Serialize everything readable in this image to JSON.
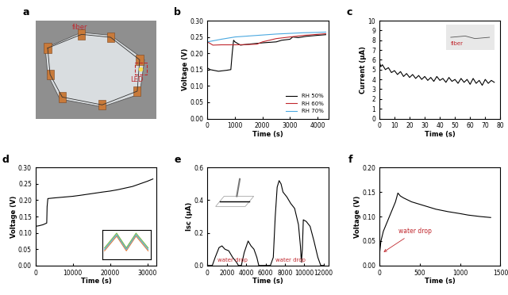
{
  "chart_data": [
    {
      "type": "image",
      "title": "a",
      "annotations": [
        "fiber",
        "LED"
      ]
    },
    {
      "type": "line",
      "title": "b",
      "x_label": "Time (s)",
      "y_label": "Voltage (V)",
      "xlim": [
        0,
        4400
      ],
      "xticks": [
        0,
        1000,
        2000,
        3000,
        4000
      ],
      "ylim": [
        0,
        0.3
      ],
      "yticks": [
        {
          "value": 0,
          "label": "0.00"
        },
        {
          "value": 0.05,
          "label": "0.05"
        },
        {
          "value": 0.1,
          "label": "0.10"
        },
        {
          "value": 0.15,
          "label": "0.15"
        },
        {
          "value": 0.2,
          "label": "0.20"
        },
        {
          "value": 0.25,
          "label": "0.25"
        },
        {
          "value": 0.3,
          "label": "0.30"
        }
      ],
      "legend": "lower right",
      "series": [
        {
          "name": "RH 50%",
          "color": "#000000",
          "x": [
            0,
            100,
            400,
            700,
            850,
            900,
            950,
            1000,
            1200,
            1500,
            2000,
            2500,
            2700,
            3000,
            3100,
            3300,
            3600,
            4000,
            4300
          ],
          "values": [
            0.155,
            0.15,
            0.145,
            0.148,
            0.15,
            0.2,
            0.24,
            0.235,
            0.225,
            0.228,
            0.232,
            0.235,
            0.24,
            0.243,
            0.25,
            0.248,
            0.252,
            0.255,
            0.257
          ]
        },
        {
          "name": "RH 60%",
          "color": "#c0272d",
          "x": [
            0,
            200,
            500,
            1000,
            1500,
            1800,
            2000,
            2500,
            3000,
            3500,
            4000,
            4300
          ],
          "values": [
            0.235,
            0.225,
            0.226,
            0.226,
            0.227,
            0.228,
            0.235,
            0.245,
            0.25,
            0.255,
            0.258,
            0.26
          ]
        },
        {
          "name": "RH 70%",
          "color": "#4aa8e0",
          "x": [
            0,
            500,
            1000,
            1500,
            2000,
            2500,
            3000,
            3500,
            4000,
            4300
          ],
          "values": [
            0.235,
            0.243,
            0.25,
            0.253,
            0.256,
            0.259,
            0.261,
            0.263,
            0.264,
            0.265
          ]
        }
      ]
    },
    {
      "type": "line",
      "title": "c",
      "x_label": "Time (s)",
      "y_label": "Current (μA)",
      "xlim": [
        0,
        80
      ],
      "xticks": [
        0,
        10,
        20,
        30,
        40,
        50,
        60,
        70,
        80
      ],
      "ylim": [
        0,
        10
      ],
      "yticks": [
        0,
        1,
        2,
        3,
        4,
        5,
        6,
        7,
        8,
        9,
        10
      ],
      "annotations": [
        "fiber"
      ],
      "series": [
        {
          "color": "#000000",
          "x": [
            0,
            1,
            2,
            4,
            6,
            8,
            10,
            12,
            14,
            16,
            18,
            20,
            22,
            24,
            26,
            28,
            30,
            32,
            34,
            36,
            38,
            40,
            42,
            44,
            46,
            48,
            50,
            52,
            54,
            56,
            58,
            60,
            62,
            64,
            66,
            68,
            70,
            72,
            74,
            76
          ],
          "values": [
            5.8,
            5.3,
            5.5,
            5.0,
            5.2,
            4.7,
            4.9,
            4.5,
            4.8,
            4.3,
            4.6,
            4.2,
            4.5,
            4.1,
            4.4,
            4.0,
            4.3,
            3.9,
            4.2,
            3.8,
            4.3,
            3.9,
            4.1,
            3.7,
            4.2,
            3.8,
            4.0,
            3.6,
            4.1,
            3.7,
            4.0,
            3.5,
            4.1,
            3.6,
            3.9,
            3.4,
            4.0,
            3.6,
            3.9,
            3.7
          ]
        }
      ]
    },
    {
      "type": "line",
      "title": "d",
      "x_label": "Time (s)",
      "y_label": "Voltage (V)",
      "xlim": [
        0,
        32500
      ],
      "xticks": [
        0,
        10000,
        20000,
        30000
      ],
      "ylim": [
        0,
        0.3
      ],
      "yticks": [
        {
          "value": 0,
          "label": "0.00"
        },
        {
          "value": 0.05,
          "label": "0.05"
        },
        {
          "value": 0.1,
          "label": "0.10"
        },
        {
          "value": 0.15,
          "label": "0.15"
        },
        {
          "value": 0.2,
          "label": "0.20"
        },
        {
          "value": 0.25,
          "label": "0.25"
        },
        {
          "value": 0.3,
          "label": "0.30"
        }
      ],
      "series": [
        {
          "color": "#000000",
          "x": [
            0,
            1000,
            2000,
            3000,
            3100,
            3300,
            5000,
            8000,
            10000,
            12000,
            15000,
            18000,
            20000,
            22000,
            24000,
            26000,
            28000,
            30000,
            31500
          ],
          "values": [
            0.12,
            0.122,
            0.125,
            0.13,
            0.18,
            0.205,
            0.207,
            0.21,
            0.212,
            0.215,
            0.22,
            0.225,
            0.228,
            0.232,
            0.237,
            0.242,
            0.25,
            0.258,
            0.265
          ]
        }
      ]
    },
    {
      "type": "line",
      "title": "e",
      "x_label": "Time (s)",
      "y_label": "Isc (μA)",
      "xlim": [
        0,
        12500
      ],
      "xticks": [
        0,
        2000,
        4000,
        6000,
        8000,
        10000,
        12000
      ],
      "ylim": [
        0,
        0.6
      ],
      "yticks": [
        {
          "value": 0,
          "label": "0.0"
        },
        {
          "value": 0.2,
          "label": "0.2"
        },
        {
          "value": 0.4,
          "label": "0.4"
        },
        {
          "value": 0.6,
          "label": "0.6"
        }
      ],
      "annotations": [
        {
          "text": "water drop",
          "x": 1000,
          "y": 0.01,
          "color": "#c0272d"
        },
        {
          "text": "water drop",
          "x": 7000,
          "y": 0.01,
          "color": "#c0272d"
        }
      ],
      "series": [
        {
          "color": "#000000",
          "x": [
            0,
            500,
            800,
            1200,
            1500,
            1800,
            2200,
            2600,
            3000,
            3200,
            3500,
            3800,
            4200,
            4500,
            4800,
            5100,
            5300,
            6500,
            6800,
            7000,
            7200,
            7400,
            7600,
            7800,
            8200,
            8600,
            9000,
            9400,
            9600,
            9700,
            9800,
            9900,
            10200,
            10600,
            11000,
            11400,
            11700,
            12000
          ],
          "values": [
            0,
            0,
            0.05,
            0.11,
            0.12,
            0.1,
            0.09,
            0.05,
            0.02,
            0,
            0,
            0.08,
            0.15,
            0.12,
            0.1,
            0.05,
            0,
            0,
            0.05,
            0.3,
            0.48,
            0.52,
            0.5,
            0.45,
            0.42,
            0.38,
            0.35,
            0.25,
            0.12,
            0.02,
            0.1,
            0.28,
            0.27,
            0.24,
            0.15,
            0.05,
            0,
            0
          ]
        }
      ]
    },
    {
      "type": "line",
      "title": "f",
      "x_label": "Time (s)",
      "y_label": "Voltage (V)",
      "xlim": [
        0,
        1500
      ],
      "xticks": [
        0,
        500,
        1000,
        1500
      ],
      "ylim": [
        0,
        0.2
      ],
      "yticks": [
        {
          "value": 0,
          "label": "0.00"
        },
        {
          "value": 0.05,
          "label": "0.05"
        },
        {
          "value": 0.1,
          "label": "0.10"
        },
        {
          "value": 0.15,
          "label": "0.15"
        },
        {
          "value": 0.2,
          "label": "0.20"
        }
      ],
      "annotations": [
        {
          "text": "water drop",
          "x": 30,
          "y": 0.025,
          "color": "#c0272d"
        }
      ],
      "series": [
        {
          "color": "#000000",
          "x": [
            0,
            20,
            50,
            100,
            150,
            200,
            230,
            260,
            300,
            400,
            500,
            600,
            700,
            850,
            1000,
            1100,
            1250,
            1380
          ],
          "values": [
            0.02,
            0.05,
            0.07,
            0.09,
            0.11,
            0.13,
            0.148,
            0.142,
            0.138,
            0.13,
            0.125,
            0.12,
            0.115,
            0.11,
            0.106,
            0.103,
            0.1,
            0.098
          ]
        }
      ]
    }
  ]
}
